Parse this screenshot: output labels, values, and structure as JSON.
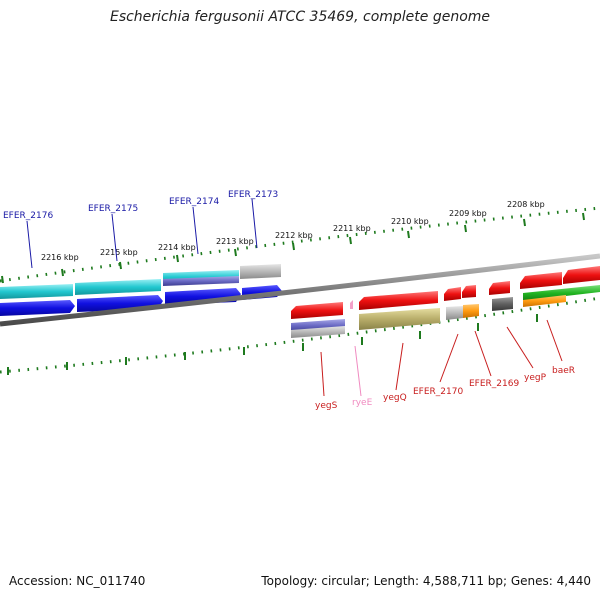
{
  "title": "Escherichia fergusonii ATCC 35469, complete genome",
  "accession": "Accession: NC_011740",
  "summary": "Topology: circular; Length: 4,588,711 bp; Genes: 4,440",
  "scale": {
    "outer_labels": [
      "2216 kbp",
      "2215 kbp",
      "2214 kbp",
      "2213 kbp",
      "2212 kbp",
      "2211 kbp",
      "2210 kbp",
      "2209 kbp",
      "2208 kbp"
    ]
  },
  "genes_top": [
    "EFER_2176",
    "EFER_2175",
    "EFER_2174",
    "EFER_2173"
  ],
  "genes_bottom": [
    "yegS",
    "ryeE",
    "yegQ",
    "EFER_2170",
    "EFER_2169",
    "yegP",
    "baeR"
  ],
  "colors": {
    "cds_blue": "#1010e0",
    "cds_red": "#ee1111",
    "cyan": "#22c8d0",
    "olive": "#b8ad6a",
    "gray": "#b8b8b8",
    "orange": "#ff9a10",
    "green": "#22b522",
    "tick": "#1e7a1e"
  }
}
